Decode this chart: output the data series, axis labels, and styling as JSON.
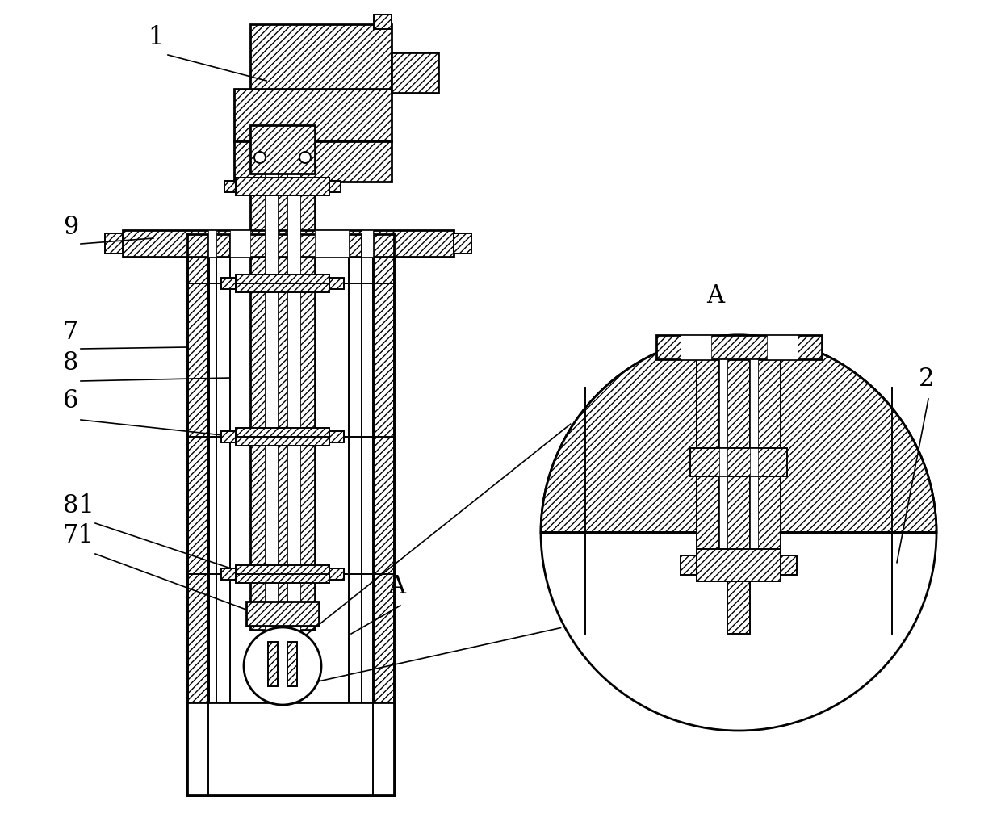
{
  "bg_color": "#ffffff",
  "line_color": "#000000",
  "hatch": "////",
  "figsize": [
    12.4,
    10.28
  ],
  "dpi": 100,
  "font_size": 22,
  "lw_main": 2.0,
  "lw_thin": 1.4,
  "lw_label": 1.2
}
